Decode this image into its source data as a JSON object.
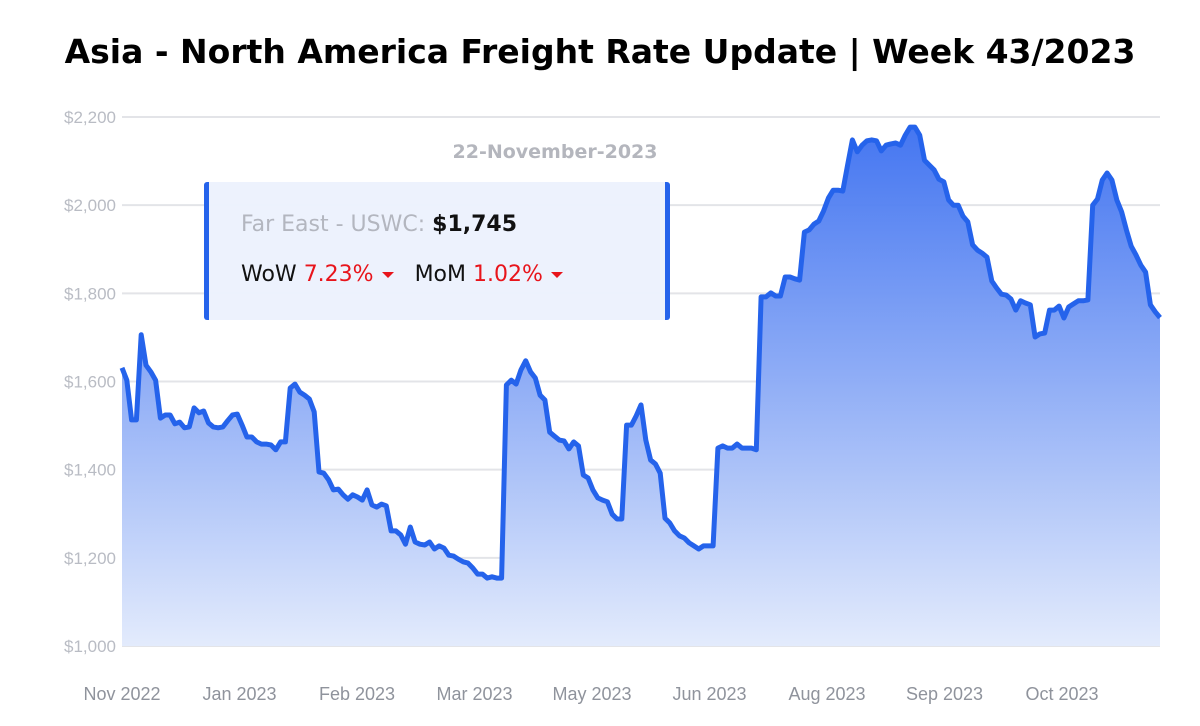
{
  "title": "Asia - North America Freight Rate Update | Week 43/2023",
  "tooltip": {
    "date": "22-November-2023",
    "series_label": "Far East - USWC:",
    "value_label": "$1,745",
    "wow_label": "WoW",
    "wow_value": "7.23%",
    "wow_direction": "down",
    "mom_label": "MoM",
    "mom_value": "1.02%",
    "mom_direction": "down"
  },
  "colors": {
    "line": "#2563eb",
    "area_top": "#3b6ff0",
    "area_bottom": "#e3ebfc",
    "negative": "#e8141b"
  },
  "chart_data": {
    "type": "area",
    "title": "Asia - North America Freight Rate Update | Week 43/2023",
    "xlabel": "",
    "ylabel": "",
    "ylim": [
      1000,
      2200
    ],
    "y_ticks": [
      "$1,000",
      "$1,200",
      "$1,400",
      "$1,600",
      "$1,800",
      "$2,000",
      "$2,200"
    ],
    "y_tick_values": [
      1000,
      1200,
      1400,
      1600,
      1800,
      2000,
      2200
    ],
    "x_ticks": [
      "Nov 2022",
      "Jan 2023",
      "Feb 2023",
      "Mar 2023",
      "May 2023",
      "Jun 2023",
      "Aug 2023",
      "Sep 2023",
      "Oct 2023"
    ],
    "grid": true,
    "legend": "none",
    "series": [
      {
        "name": "Far East - USWC",
        "values": [
          1631,
          1603,
          1513,
          1513,
          1706,
          1637,
          1622,
          1603,
          1517,
          1524,
          1524,
          1504,
          1508,
          1495,
          1497,
          1540,
          1529,
          1533,
          1506,
          1497,
          1495,
          1497,
          1511,
          1524,
          1526,
          1501,
          1474,
          1474,
          1463,
          1458,
          1458,
          1456,
          1445,
          1463,
          1463,
          1585,
          1594,
          1576,
          1569,
          1560,
          1531,
          1395,
          1392,
          1377,
          1354,
          1356,
          1343,
          1333,
          1343,
          1338,
          1331,
          1354,
          1320,
          1315,
          1322,
          1318,
          1261,
          1261,
          1252,
          1231,
          1270,
          1236,
          1231,
          1229,
          1236,
          1220,
          1227,
          1222,
          1206,
          1204,
          1197,
          1191,
          1188,
          1177,
          1163,
          1163,
          1154,
          1157,
          1154,
          1154,
          1592,
          1603,
          1594,
          1626,
          1647,
          1622,
          1608,
          1569,
          1558,
          1485,
          1476,
          1467,
          1465,
          1447,
          1463,
          1454,
          1388,
          1381,
          1354,
          1336,
          1331,
          1327,
          1299,
          1288,
          1288,
          1501,
          1501,
          1522,
          1547,
          1467,
          1422,
          1413,
          1392,
          1290,
          1279,
          1261,
          1250,
          1245,
          1234,
          1227,
          1220,
          1227,
          1227,
          1227,
          1449,
          1454,
          1449,
          1449,
          1458,
          1449,
          1449,
          1449,
          1445,
          1792,
          1792,
          1801,
          1794,
          1794,
          1837,
          1837,
          1833,
          1830,
          1939,
          1944,
          1957,
          1964,
          1987,
          2016,
          2034,
          2034,
          2032,
          2091,
          2148,
          2121,
          2136,
          2146,
          2148,
          2146,
          2123,
          2136,
          2139,
          2141,
          2136,
          2159,
          2177,
          2177,
          2159,
          2102,
          2091,
          2080,
          2059,
          2053,
          2012,
          2000,
          2000,
          1975,
          1962,
          1910,
          1898,
          1891,
          1882,
          1828,
          1812,
          1798,
          1796,
          1787,
          1762,
          1783,
          1778,
          1774,
          1701,
          1708,
          1710,
          1762,
          1762,
          1771,
          1744,
          1769,
          1776,
          1783,
          1783,
          1785,
          2000,
          2014,
          2057,
          2073,
          2057,
          2012,
          1985,
          1944,
          1907,
          1887,
          1864,
          1848,
          1774,
          1758,
          1745
        ]
      }
    ]
  }
}
